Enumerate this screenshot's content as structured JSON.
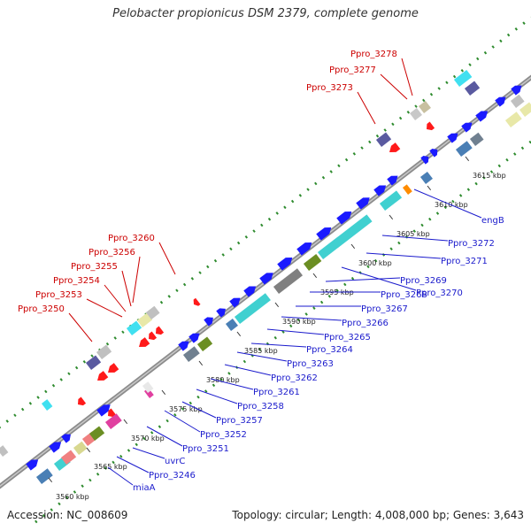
{
  "title": "Pelobacter propionicus DSM 2379, complete genome",
  "footer": {
    "accession": "Accession: NC_008609",
    "summary": "Topology: circular; Length: 4,008,000 bp; Genes: 3,643"
  },
  "colors": {
    "backbone": "#8c8c8c",
    "gc_dots": "#2e8b2e",
    "forward_cds": "#1a1aff",
    "reverse_cds": "#ff1a1a",
    "label_reverse": "#cc0000",
    "label_forward": "#1a1acc",
    "tick_line": "#333333"
  },
  "scale": {
    "ticks": [
      "3560 kbp",
      "3565 kbp",
      "3570 kbp",
      "3575 kbp",
      "3580 kbp",
      "3585 kbp",
      "3590 kbp",
      "3595 kbp",
      "3600 kbp",
      "3605 kbp",
      "3610 kbp",
      "3615 kbp"
    ]
  },
  "labels_reverse": [
    "Ppro_3250",
    "Ppro_3253",
    "Ppro_3254",
    "Ppro_3255",
    "Ppro_3256",
    "Ppro_3260",
    "Ppro_3273",
    "Ppro_3277",
    "Ppro_3278"
  ],
  "labels_forward": [
    "miaA",
    "Ppro_3246",
    "uvrC",
    "Ppro_3251",
    "Ppro_3252",
    "Ppro_3257",
    "Ppro_3258",
    "Ppro_3261",
    "Ppro_3262",
    "Ppro_3263",
    "Ppro_3264",
    "Ppro_3265",
    "Ppro_3266",
    "Ppro_3267",
    "Ppro_3268",
    "Ppro_3269",
    "Ppro_3270",
    "Ppro_3271",
    "Ppro_3272",
    "engB"
  ],
  "feature_icons": [
    "forward-cds-arrow",
    "reverse-cds-arrow",
    "cog-category-box"
  ]
}
